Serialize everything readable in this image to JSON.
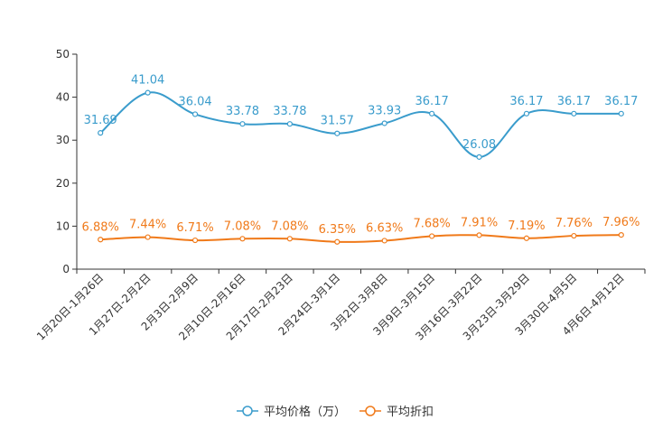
{
  "chart_data": {
    "type": "line",
    "title": "",
    "xlabel": "",
    "ylabel": "",
    "ylim": [
      0,
      50
    ],
    "yticks": [
      0,
      10,
      20,
      30,
      40,
      50
    ],
    "grid": false,
    "legend": "bottom-center",
    "categories": [
      "1月20日-1月26日",
      "1月27日-2月2日",
      "2月3日-2月9日",
      "2月10日-2月16日",
      "2月17日-2月23日",
      "2月24日-3月1日",
      "3月2日-3月8日",
      "3月9日-3月15日",
      "3月16日-3月22日",
      "3月23日-3月29日",
      "3月30日-4月5日",
      "4月6日-4月12日"
    ],
    "series": [
      {
        "name": "平均价格（万）",
        "color": "#3a9ccc",
        "values": [
          31.69,
          41.04,
          36.04,
          33.78,
          33.78,
          31.57,
          33.93,
          36.17,
          26.08,
          36.17,
          36.17,
          36.17
        ],
        "labels": [
          "31.69",
          "41.04",
          "36.04",
          "33.78",
          "33.78",
          "31.57",
          "33.93",
          "36.17",
          "26.08",
          "36.17",
          "36.17",
          "36.17"
        ]
      },
      {
        "name": "平均折扣",
        "color": "#f07a1a",
        "values": [
          6.88,
          7.44,
          6.71,
          7.08,
          7.08,
          6.35,
          6.63,
          7.68,
          7.91,
          7.19,
          7.76,
          7.96
        ],
        "labels": [
          "6.88%",
          "7.44%",
          "6.71%",
          "7.08%",
          "7.08%",
          "6.35%",
          "6.63%",
          "7.68%",
          "7.91%",
          "7.19%",
          "7.76%",
          "7.96%"
        ]
      }
    ]
  }
}
